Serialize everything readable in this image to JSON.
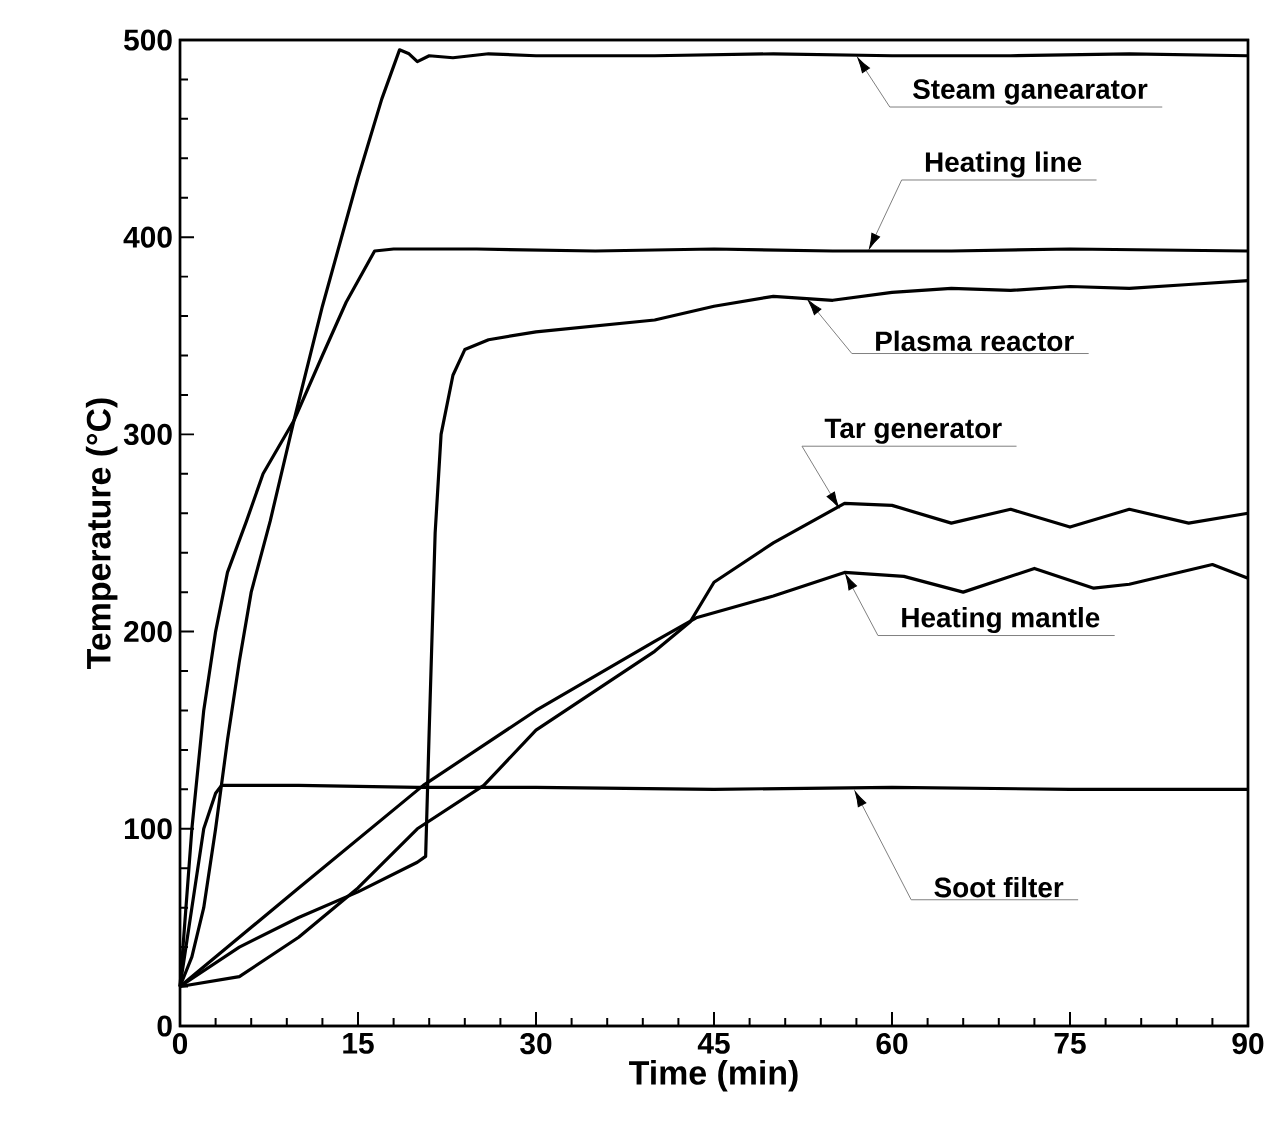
{
  "chart_data": {
    "type": "line",
    "xlabel": "Time (min)",
    "ylabel": "Temperature (°C)",
    "xlim": [
      0,
      90
    ],
    "ylim": [
      0,
      500
    ],
    "xticks": [
      0,
      15,
      30,
      45,
      60,
      75,
      90
    ],
    "yticks": [
      0,
      100,
      200,
      300,
      400,
      500
    ],
    "grid": false,
    "marker": "none",
    "line_style": "solid",
    "series": [
      {
        "color": "#000000",
        "x": [
          0,
          1,
          2,
          3,
          4,
          5,
          6,
          7.6,
          9.6,
          12,
          15,
          17,
          18.5,
          19.3,
          20,
          21,
          23,
          26,
          30,
          40,
          50,
          60,
          70,
          80,
          90
        ],
        "values": [
          20,
          35,
          60,
          100,
          145,
          185,
          220,
          256,
          307,
          365,
          430,
          470,
          495,
          493,
          489,
          492,
          491,
          493,
          492,
          492,
          493,
          492,
          492,
          493,
          492
        ]
      },
      {
        "color": "#000000",
        "x": [
          0,
          1,
          2,
          3,
          4,
          5.6,
          7,
          9.6,
          12,
          14,
          16.4,
          18,
          25,
          35,
          45,
          55,
          65,
          75,
          90
        ],
        "values": [
          20,
          100,
          160,
          200,
          230,
          256,
          280,
          307,
          340,
          367,
          393,
          394,
          394,
          393,
          394,
          393,
          393,
          394,
          393
        ]
      },
      {
        "color": "#000000",
        "x": [
          0,
          5,
          10,
          15,
          20,
          20.7,
          21,
          21.5,
          22,
          23,
          24,
          26,
          30,
          35,
          40,
          45,
          50,
          55,
          60,
          65,
          70,
          75,
          80,
          85,
          90
        ],
        "values": [
          20,
          40,
          55,
          68,
          83,
          86,
          150,
          250,
          300,
          330,
          343,
          348,
          352,
          355,
          358,
          365,
          370,
          368,
          372,
          374,
          373,
          375,
          374,
          376,
          378
        ]
      },
      {
        "color": "#000000",
        "x": [
          0,
          5,
          10,
          15,
          20,
          25.6,
          30,
          35,
          40,
          43,
          45,
          50,
          56,
          60,
          65,
          70,
          75,
          80,
          85,
          90
        ],
        "values": [
          20,
          25,
          45,
          70,
          100,
          122,
          150,
          170,
          190,
          205,
          225,
          245,
          265,
          264,
          255,
          262,
          253,
          262,
          255,
          260
        ]
      },
      {
        "color": "#000000",
        "x": [
          0,
          10,
          20.5,
          30,
          40,
          43.5,
          50,
          56,
          61,
          66,
          72,
          77,
          80,
          87,
          90
        ],
        "values": [
          20,
          70,
          122,
          160,
          195,
          207,
          218,
          230,
          228,
          220,
          232,
          222,
          224,
          234,
          227
        ]
      },
      {
        "color": "#000000",
        "x": [
          0,
          1,
          2,
          3,
          3.5,
          10,
          20,
          30,
          45,
          60,
          75,
          90
        ],
        "values": [
          20,
          60,
          100,
          118,
          122,
          122,
          121,
          121,
          120,
          121,
          120,
          120
        ]
      }
    ],
    "annotations": [
      {
        "text": "Steam ganearator",
        "x": 57,
        "y": 492
      },
      {
        "text": "Heating line",
        "x": 58,
        "y": 393
      },
      {
        "text": "Plasma reactor",
        "x": 52.8,
        "y": 369
      },
      {
        "text": "Tar generator",
        "x": 55.6,
        "y": 262
      },
      {
        "text": "Heating mantle",
        "x": 56,
        "y": 230
      },
      {
        "text": "Soot filter",
        "x": 56.8,
        "y": 120
      }
    ]
  }
}
